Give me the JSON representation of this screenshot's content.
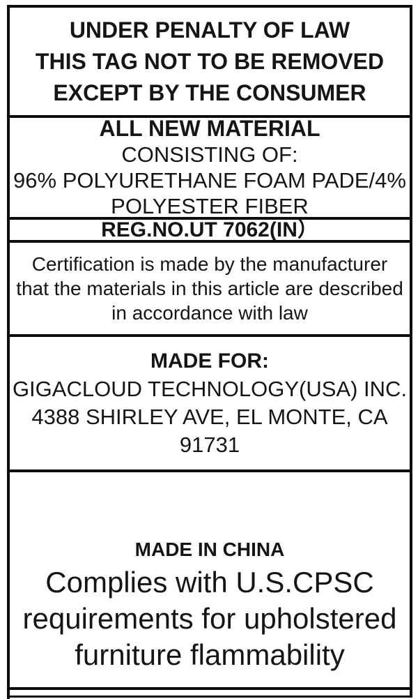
{
  "penalty_section": {
    "line1": "UNDER PENALTY OF LAW",
    "line2": "THIS TAG NOT TO BE REMOVED",
    "line3": "EXCEPT BY THE CONSUMER"
  },
  "material_section": {
    "title": "ALL NEW MATERIAL",
    "subtitle": "CONSISTING OF:",
    "content_line1": "96% POLYURETHANE FOAM PADE/4%",
    "content_line2": "POLYESTER FIBER"
  },
  "registration_section": {
    "reg_number": "REG.NO.UT 7062(IN）"
  },
  "certification_section": {
    "line1": "Certification is made by the manufacturer",
    "line2": "that the materials in this article are described",
    "line3": "in accordance with law"
  },
  "made_for_section": {
    "title": "MADE FOR:",
    "company": "GIGACLOUD TECHNOLOGY(USA) INC.",
    "address_line1": "4388 SHIRLEY AVE, EL MONTE, CA",
    "address_line2": "91731"
  },
  "origin_section": {
    "title": "MADE IN CHINA",
    "compliance_line1": "Complies with U.S.CPSC",
    "compliance_line2": "requirements for upholstered",
    "compliance_line3": "furniture flammability"
  },
  "colors": {
    "text": "#151515",
    "border": "#0d0d0d",
    "background": "#ffffff"
  }
}
